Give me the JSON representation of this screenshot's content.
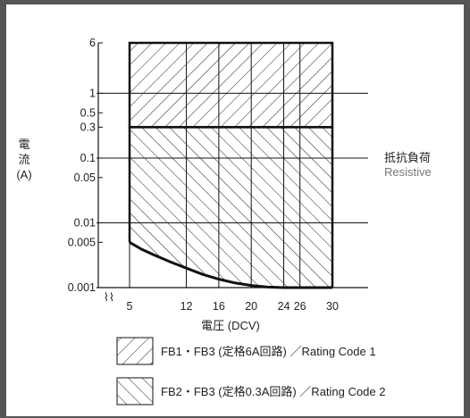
{
  "chart_data": {
    "type": "area",
    "title": "",
    "xlabel": "電圧 (DCV)",
    "ylabel_chars": [
      "電",
      "流"
    ],
    "ylabel_unit": "(A)",
    "y_scale": "log",
    "x_ticks": [
      5,
      12,
      16,
      20,
      24,
      26,
      30
    ],
    "x_tick_labels": [
      "5",
      "12",
      "16",
      "20",
      "24",
      "26",
      "30"
    ],
    "y_ticks": [
      0.001,
      0.005,
      0.01,
      0.05,
      0.1,
      0.3,
      0.5,
      1,
      6
    ],
    "y_tick_labels": [
      "0.001",
      "0.005",
      "0.01",
      "0.05",
      "0.1",
      "0.3",
      "0.5",
      "1",
      "6"
    ],
    "xlim": [
      5,
      30
    ],
    "axis_break_symbol": "⌇⌇",
    "grid": true,
    "series": [
      {
        "name": "FB1・FB3 (定格6A回路) / Rating Code 1",
        "region": "rectangle",
        "x_range": [
          5,
          30
        ],
        "y_range": [
          0.3,
          6
        ],
        "hatch": "forward"
      },
      {
        "name": "FB2・FB3 (定格0.3A回路) / Rating Code 2",
        "region": "above-curve",
        "x_range": [
          5,
          30
        ],
        "y_top": 0.3,
        "lower_boundary": {
          "x": [
            5,
            6.5,
            8,
            10,
            12,
            14,
            16,
            18,
            20,
            22,
            24,
            26,
            30
          ],
          "y": [
            0.005,
            0.0039,
            0.0032,
            0.0025,
            0.002,
            0.0016,
            0.00135,
            0.00118,
            0.00108,
            0.00102,
            0.001,
            0.001,
            0.001
          ]
        },
        "hatch": "backward"
      }
    ],
    "annotation": {
      "label_jp": "抵抗負荷",
      "label_en": "Resistive",
      "at_y": 0.1
    },
    "legend": {
      "placement": "bottom",
      "items": [
        {
          "text": "FB1・FB3 (定格6A回路) ／Rating Code 1",
          "hatch": "forward"
        },
        {
          "text": "FB2・FB3 (定格0.3A回路) ／Rating Code 2",
          "hatch": "backward"
        }
      ]
    }
  },
  "colors": {
    "frame": "#555555",
    "line": "#111111",
    "hatch": "#222222",
    "annotation_en": "#777777"
  }
}
